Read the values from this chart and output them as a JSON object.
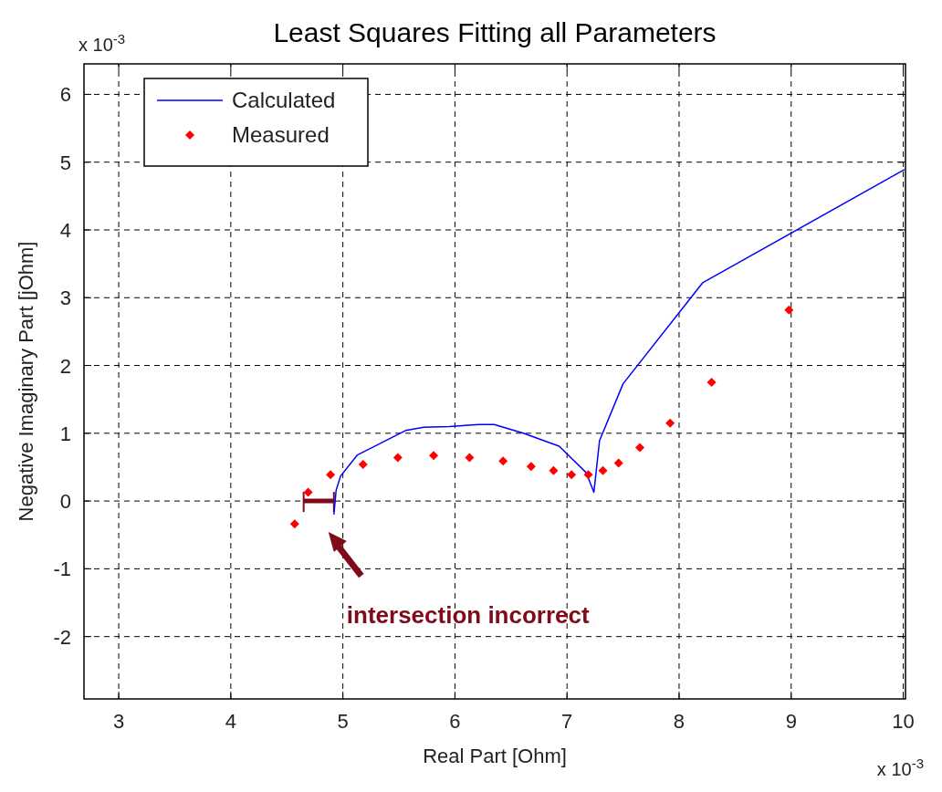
{
  "chart_data": {
    "type": "line",
    "title": "Least Squares Fitting all Parameters",
    "xlabel": "Real Part [Ohm]",
    "ylabel": "Negative Imaginary Part [jOhm]",
    "xlim": [
      2.69,
      10.02
    ],
    "xticks": [
      3,
      4,
      5,
      6,
      7,
      8,
      9,
      10
    ],
    "ylim": [
      -2.92,
      6.45
    ],
    "yticks": [
      -2,
      -1,
      0,
      1,
      2,
      3,
      4,
      5,
      6
    ],
    "grid": true,
    "legend": "top left",
    "annotations": [
      "x 10$^{-3}$",
      "x 10$^{-3}$",
      "intersection incorrect"
    ],
    "series": [
      {
        "name": "Calculated",
        "color": "#0000ff",
        "line_style": "solid",
        "marker": "none",
        "x": [
          4.92,
          4.94,
          4.98,
          5.13,
          5.56,
          5.72,
          5.95,
          6.22,
          6.35,
          6.61,
          6.93,
          7.17,
          7.24,
          7.29,
          7.5,
          8.21,
          10.01
        ],
        "values": [
          -0.2,
          0.16,
          0.37,
          0.68,
          1.04,
          1.09,
          1.1,
          1.13,
          1.13,
          1.0,
          0.81,
          0.42,
          0.13,
          0.89,
          1.73,
          3.22,
          4.89
        ]
      },
      {
        "name": "Measured",
        "type": "scatter",
        "color": "#ff0000",
        "marker": "diamond",
        "x": [
          4.57,
          4.69,
          4.89,
          5.18,
          5.49,
          5.81,
          6.13,
          6.43,
          6.68,
          6.88,
          7.04,
          7.19,
          7.32,
          7.46,
          7.65,
          7.92,
          8.29,
          8.98
        ],
        "values": [
          -0.34,
          0.13,
          0.39,
          0.54,
          0.64,
          0.67,
          0.64,
          0.59,
          0.51,
          0.45,
          0.39,
          0.39,
          0.45,
          0.56,
          0.79,
          1.15,
          1.75,
          2.82
        ]
      }
    ]
  }
}
